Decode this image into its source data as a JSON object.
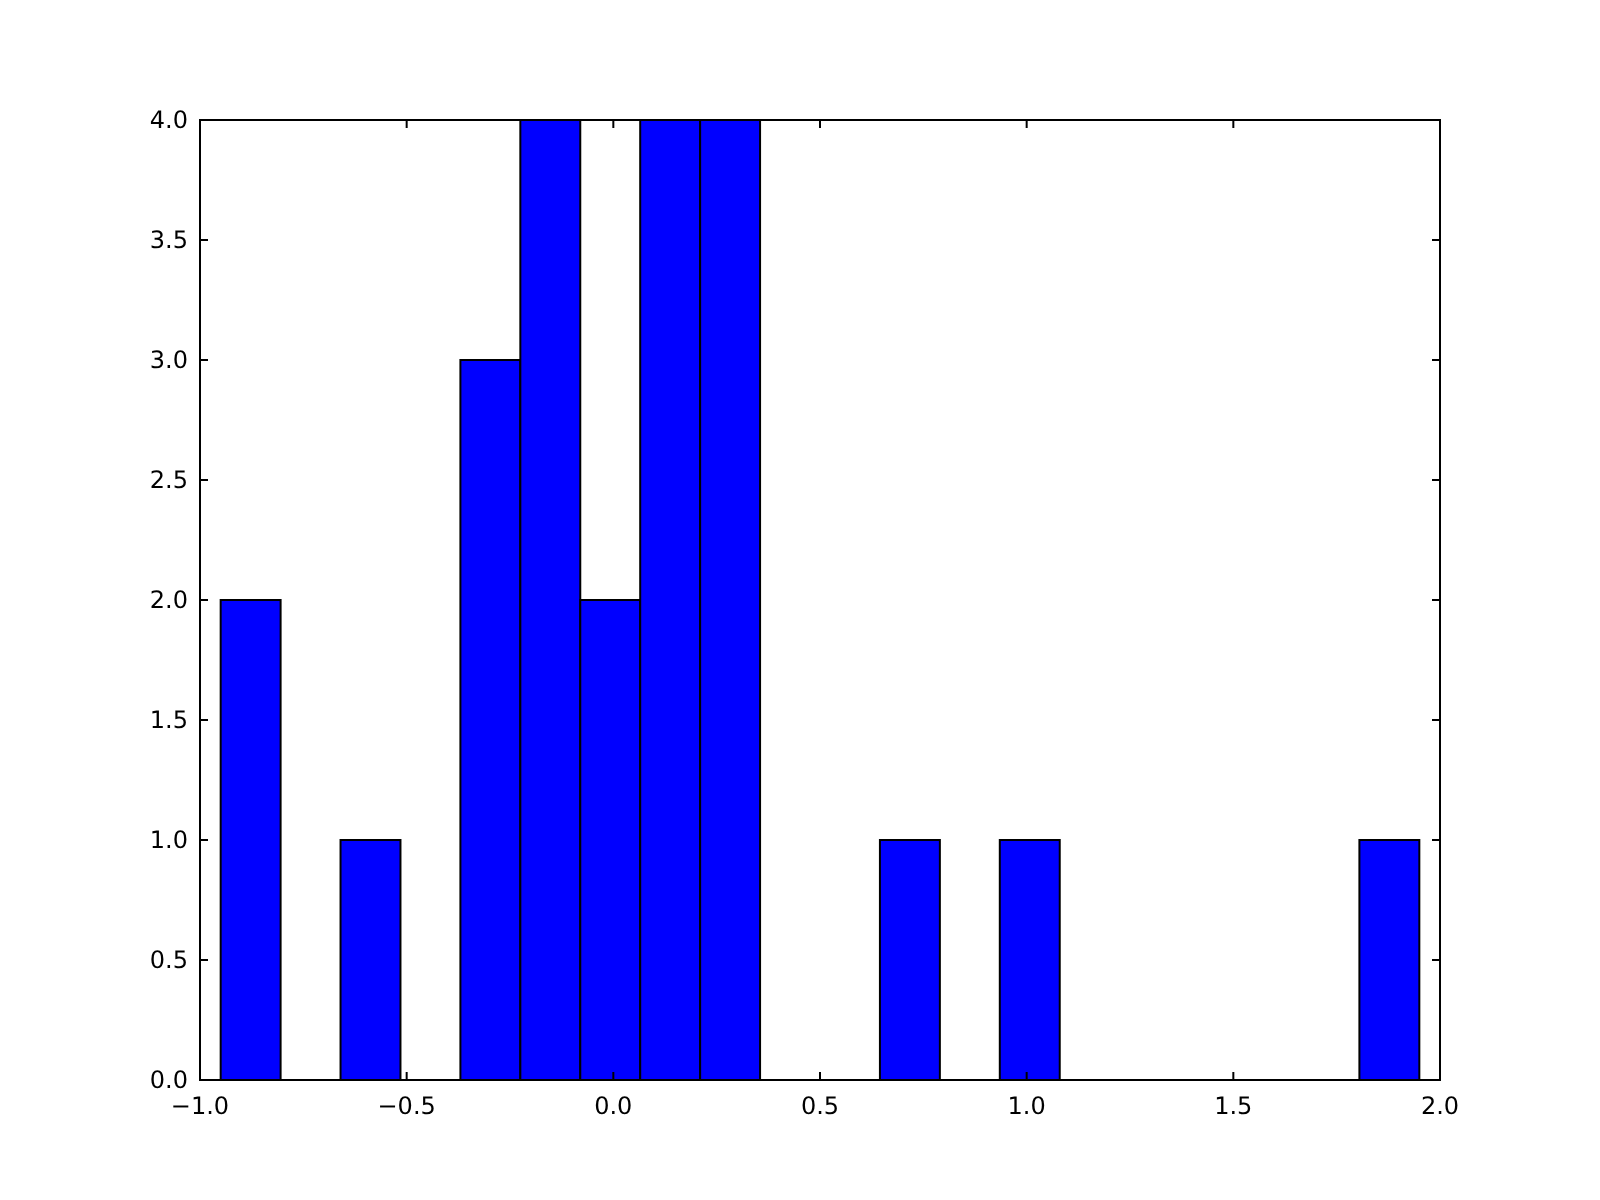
{
  "chart_data": {
    "type": "histogram",
    "color": "#0000ff",
    "bins": [
      -0.95,
      -0.805,
      -0.66,
      -0.515,
      -0.37,
      -0.225,
      -0.08,
      0.065,
      0.21,
      0.355,
      0.5,
      0.645,
      0.79,
      0.935,
      1.08,
      1.225,
      1.37,
      1.515,
      1.66,
      1.805,
      1.95
    ],
    "values": [
      2,
      0,
      1,
      0,
      3,
      4,
      2,
      4,
      4,
      0,
      0,
      1,
      0,
      1,
      0,
      0,
      0,
      0,
      0,
      1
    ],
    "xlim": [
      -1,
      2
    ],
    "xticks": [
      {
        "value": -1,
        "label": "−1.0"
      },
      {
        "value": -0.5,
        "label": "−0.5"
      },
      {
        "value": 0,
        "label": "0.0"
      },
      {
        "value": 0.5,
        "label": "0.5"
      },
      {
        "value": 1,
        "label": "1.0"
      },
      {
        "value": 1.5,
        "label": "1.5"
      },
      {
        "value": 2,
        "label": "2.0"
      }
    ],
    "ylim": [
      0,
      4
    ],
    "yticks": [
      {
        "value": 0,
        "label": "0.0"
      },
      {
        "value": 0.5,
        "label": "0.5"
      },
      {
        "value": 1,
        "label": "1.0"
      },
      {
        "value": 1.5,
        "label": "1.5"
      },
      {
        "value": 2,
        "label": "2.0"
      },
      {
        "value": 2.5,
        "label": "2.5"
      },
      {
        "value": 3,
        "label": "3.0"
      },
      {
        "value": 3.5,
        "label": "3.5"
      },
      {
        "value": 4,
        "label": "4.0"
      }
    ],
    "grid": false
  }
}
